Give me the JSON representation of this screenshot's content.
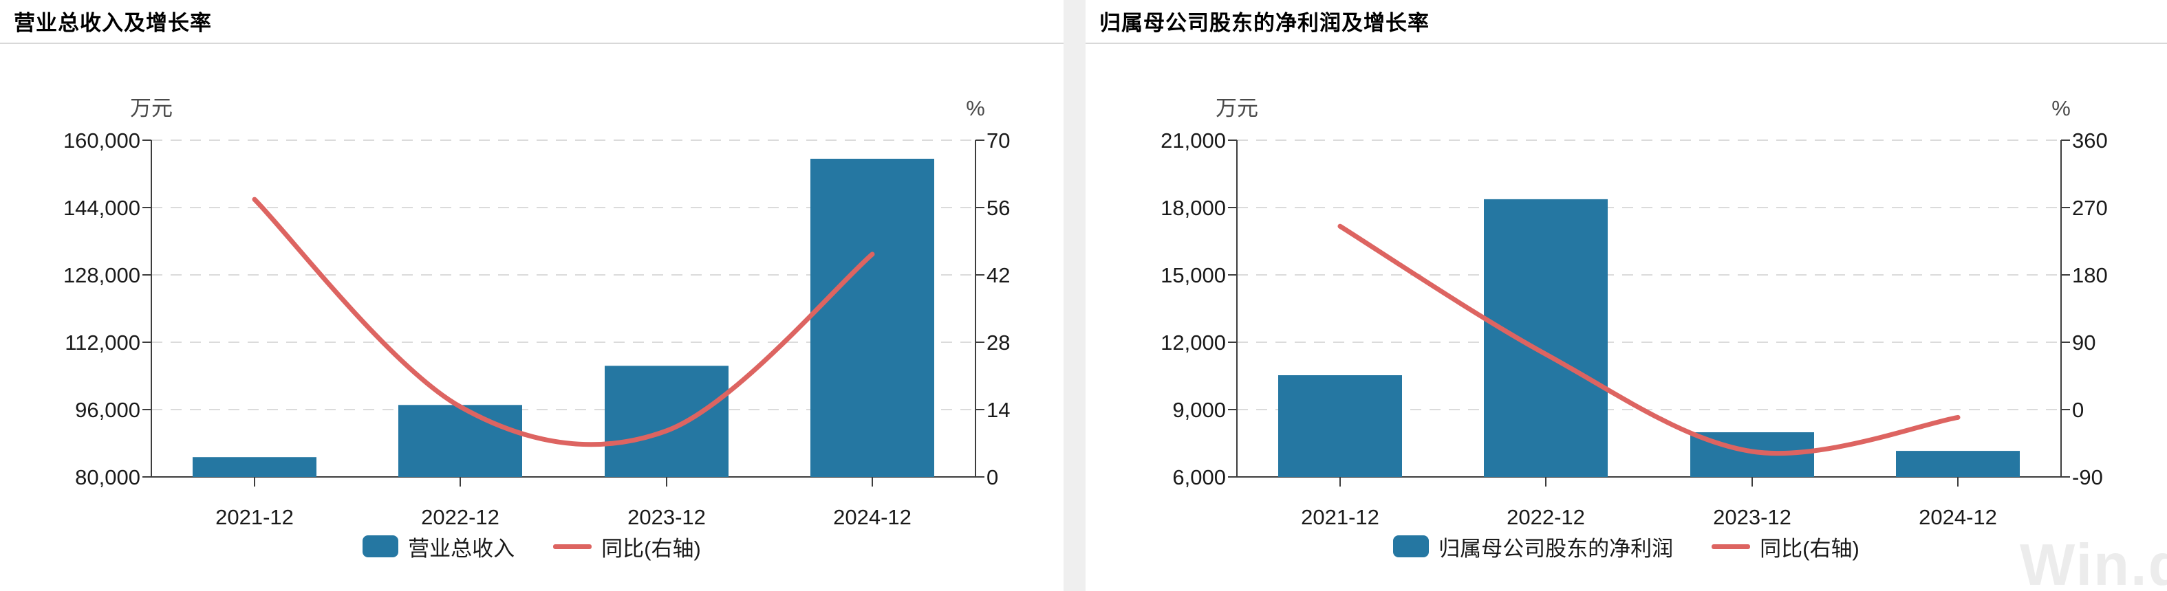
{
  "colors": {
    "bar": "#2577A2",
    "line": "#DD6461",
    "grid": "#DBDBDB",
    "axis": "#3D3D3D",
    "tick_label": "#1A1A1A",
    "unit_label": "#4A4A4A",
    "title": "#000000",
    "divider": "#D8D8D8",
    "panel_gap": "#EFEFEF",
    "watermark": "#ECECEC"
  },
  "watermark": {
    "text": "Win.d"
  },
  "panels": [
    {
      "title": "营业总收入及增长率",
      "legend": [
        {
          "type": "bar",
          "label": "营业总收入"
        },
        {
          "type": "line",
          "label": "同比(右轴)"
        }
      ]
    },
    {
      "title": "归属母公司股东的净利润及增长率",
      "legend": [
        {
          "type": "bar",
          "label": "归属母公司股东的净利润"
        },
        {
          "type": "line",
          "label": "同比(右轴)"
        }
      ]
    }
  ],
  "chart_data": [
    {
      "type": "bar+line",
      "title": "营业总收入及增长率",
      "categories": [
        "2021-12",
        "2022-12",
        "2023-12",
        "2024-12"
      ],
      "series": [
        {
          "name": "营业总收入",
          "type": "bar",
          "axis": "left",
          "values": [
            84700,
            97100,
            106400,
            155600
          ]
        },
        {
          "name": "同比(右轴)",
          "type": "line",
          "axis": "right",
          "values": [
            57.7,
            14.6,
            9.6,
            46.3
          ]
        }
      ],
      "left_axis": {
        "label": "万元",
        "min": 80000,
        "max": 160000,
        "step": 16000,
        "tick_labels": [
          "160,000",
          "144,000",
          "128,000",
          "112,000",
          "96,000",
          "80,000"
        ]
      },
      "right_axis": {
        "label": "%",
        "min": 0,
        "max": 70,
        "step": 14,
        "tick_labels": [
          "70",
          "56",
          "42",
          "28",
          "14",
          "0"
        ]
      },
      "grid": "horizontal-dashed",
      "legend_position": "bottom"
    },
    {
      "type": "bar+line",
      "title": "归属母公司股东的净利润及增长率",
      "categories": [
        "2021-12",
        "2022-12",
        "2023-12",
        "2024-12"
      ],
      "series": [
        {
          "name": "归属母公司股东的净利润",
          "type": "bar",
          "axis": "left",
          "values": [
            10530,
            18370,
            7990,
            7160
          ]
        },
        {
          "name": "同比(右轴)",
          "type": "line",
          "axis": "right",
          "values": [
            245,
            74,
            -56,
            -10.5
          ]
        }
      ],
      "left_axis": {
        "label": "万元",
        "min": 6000,
        "max": 21000,
        "step": 3000,
        "tick_labels": [
          "21,000",
          "18,000",
          "15,000",
          "12,000",
          "9,000",
          "6,000"
        ]
      },
      "right_axis": {
        "label": "%",
        "min": -90,
        "max": 360,
        "step": 90,
        "tick_labels": [
          "360",
          "270",
          "180",
          "90",
          "0",
          "-90"
        ]
      },
      "grid": "horizontal-dashed",
      "legend_position": "bottom"
    }
  ]
}
